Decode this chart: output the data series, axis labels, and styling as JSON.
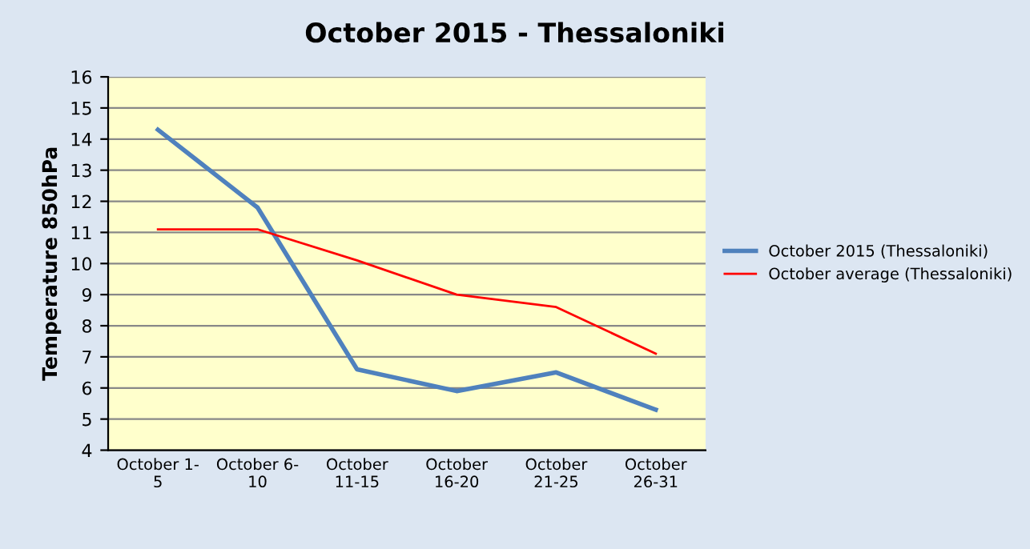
{
  "chart_data": {
    "type": "line",
    "title": "October 2015 - Thessaloniki",
    "ylabel": "Temperature 850hPa",
    "categories": [
      "October 1-\n5",
      "October 6-\n10",
      "October\n11-15",
      "October\n16-20",
      "October\n21-25",
      "October\n26-31"
    ],
    "series": [
      {
        "name": "October 2015 (Thessaloniki)",
        "color": "#4f81bd",
        "values": [
          14.3,
          11.8,
          6.6,
          5.9,
          6.5,
          5.3
        ]
      },
      {
        "name": "October average (Thessaloniki)",
        "color": "#ff0000",
        "values": [
          11.1,
          11.1,
          10.1,
          9.0,
          8.6,
          7.1
        ]
      }
    ],
    "ylim": [
      4,
      16
    ],
    "yticks": [
      4,
      5,
      6,
      7,
      8,
      9,
      10,
      11,
      12,
      13,
      14,
      15,
      16
    ],
    "grid": "y",
    "legend": "right",
    "marker": "none",
    "line_style": "solid"
  }
}
